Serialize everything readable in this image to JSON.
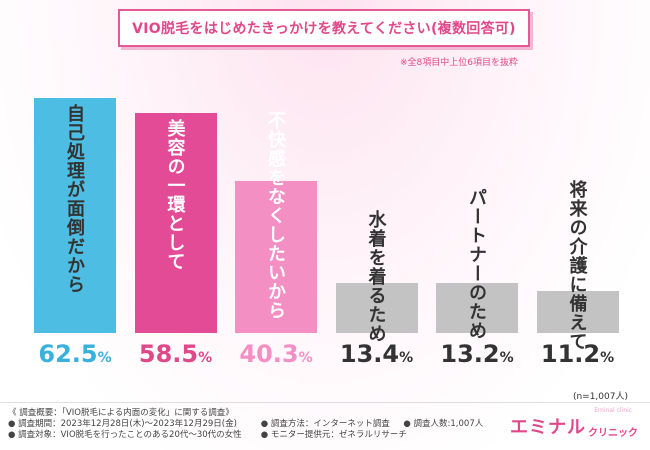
{
  "title": "VIO脱毛をはじめたきっかけを教えてください(複数回答可)",
  "note": "※全8項目中上位6項目を抜粋",
  "n_label": "(n=1,007人)",
  "footer": {
    "line1_a": "《 調査概要：「VIO脱毛による内面の変化」に関する調査》",
    "line2_a": "● 調査期間：2023年12月28日(木)〜2023年12月29日(金)",
    "line2_b": "● 調査方法：インターネット調査",
    "line2_c": "● 調査人数:1,007人",
    "line3_a": "● 調査対象：VIO脱毛を行ったことのある20代〜30代の女性",
    "line3_b": "● モニター提供元：ゼネラルリサーチ"
  },
  "logo": {
    "main": "エミナル",
    "sub": "クリニック",
    "tiny": "Eminal clinic"
  },
  "chart_data": {
    "type": "bar",
    "title": "VIO脱毛をはじめたきっかけを教えてください(複数回答可)",
    "categories": [
      "自己処理が面倒だから",
      "美容の一環として",
      "不快感をなくしたいから",
      "水着を着るため",
      "パートナーのため",
      "将来の介護に備えて"
    ],
    "values": [
      62.5,
      58.5,
      40.3,
      13.4,
      13.2,
      11.2
    ],
    "value_labels": [
      {
        "num": "62.5",
        "unit": "%"
      },
      {
        "num": "58.5",
        "unit": "%"
      },
      {
        "num": "40.3",
        "unit": "%"
      },
      {
        "num": "13.4",
        "unit": "%"
      },
      {
        "num": "13.2",
        "unit": "%"
      },
      {
        "num": "11.2",
        "unit": "%"
      }
    ],
    "bar_colors": [
      "#4dbde3",
      "#e44b97",
      "#f48fc4",
      "#c3c3c3",
      "#c3c3c3",
      "#c3c3c3"
    ],
    "label_colors": [
      "#333333",
      "#ffffff",
      "#ffffff",
      "#333333",
      "#333333",
      "#333333"
    ],
    "value_colors": [
      "#3ab0dc",
      "#e0488a",
      "#f48fc4",
      "#333333",
      "#333333",
      "#333333"
    ],
    "ylim": [
      0,
      70
    ],
    "xlabel": "",
    "ylabel": ""
  }
}
